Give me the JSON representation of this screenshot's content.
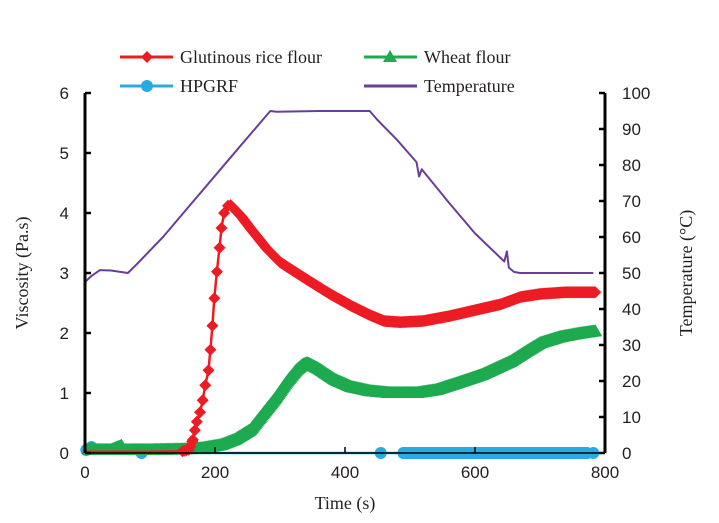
{
  "chart_data": {
    "type": "line",
    "title": "",
    "xlabel": "Time (s)",
    "ylabel": "Viscosity (Pa.s)",
    "y2label": "Temperature (°C)",
    "xlim": [
      0,
      800
    ],
    "ylim": [
      0,
      6
    ],
    "y2lim": [
      0,
      100
    ],
    "x_ticks": [
      "0",
      "200",
      "400",
      "600",
      "800"
    ],
    "y_ticks": [
      "0",
      "1",
      "2",
      "3",
      "4",
      "5",
      "6"
    ],
    "y2_ticks": [
      "0",
      "10",
      "20",
      "30",
      "40",
      "50",
      "60",
      "70",
      "80",
      "90",
      "100"
    ],
    "grid": false,
    "legend_position": "top",
    "series": [
      {
        "name": "Glutinous rice flour",
        "axis": "left",
        "color": "#ed1c24",
        "marker": "diamond",
        "points": [
          [
            0,
            0.02
          ],
          [
            100,
            0.02
          ],
          [
            150,
            0.03
          ],
          [
            160,
            0.06
          ],
          [
            166,
            0.22
          ],
          [
            169,
            0.38
          ],
          [
            172,
            0.52
          ],
          [
            177,
            0.68
          ],
          [
            181,
            0.88
          ],
          [
            185,
            1.13
          ],
          [
            190,
            1.38
          ],
          [
            193,
            1.72
          ],
          [
            196,
            2.12
          ],
          [
            199,
            2.58
          ],
          [
            203,
            3.02
          ],
          [
            207,
            3.42
          ],
          [
            210,
            3.75
          ],
          [
            214,
            4.0
          ],
          [
            220,
            4.12
          ],
          [
            224,
            4.13
          ],
          [
            240,
            3.95
          ],
          [
            254,
            3.75
          ],
          [
            280,
            3.4
          ],
          [
            300,
            3.18
          ],
          [
            340,
            2.9
          ],
          [
            377,
            2.65
          ],
          [
            410,
            2.45
          ],
          [
            438,
            2.3
          ],
          [
            460,
            2.2
          ],
          [
            485,
            2.18
          ],
          [
            520,
            2.2
          ],
          [
            560,
            2.28
          ],
          [
            600,
            2.38
          ],
          [
            640,
            2.48
          ],
          [
            670,
            2.6
          ],
          [
            700,
            2.65
          ],
          [
            740,
            2.68
          ],
          [
            785,
            2.68
          ]
        ]
      },
      {
        "name": "Wheat flour",
        "axis": "left",
        "color": "#1eaa4f",
        "marker": "triangle",
        "points": [
          [
            0,
            0.08
          ],
          [
            10,
            0.05
          ],
          [
            40,
            0.05
          ],
          [
            56,
            0.12
          ],
          [
            60,
            0.05
          ],
          [
            100,
            0.05
          ],
          [
            150,
            0.06
          ],
          [
            180,
            0.08
          ],
          [
            208,
            0.13
          ],
          [
            230,
            0.22
          ],
          [
            254,
            0.38
          ],
          [
            270,
            0.6
          ],
          [
            292,
            0.9
          ],
          [
            310,
            1.18
          ],
          [
            325,
            1.38
          ],
          [
            335,
            1.47
          ],
          [
            342,
            1.5
          ],
          [
            360,
            1.4
          ],
          [
            385,
            1.22
          ],
          [
            410,
            1.1
          ],
          [
            440,
            1.03
          ],
          [
            470,
            1.0
          ],
          [
            510,
            1.0
          ],
          [
            540,
            1.05
          ],
          [
            577,
            1.18
          ],
          [
            610,
            1.3
          ],
          [
            654,
            1.52
          ],
          [
            680,
            1.7
          ],
          [
            700,
            1.83
          ],
          [
            730,
            1.93
          ],
          [
            760,
            1.99
          ],
          [
            785,
            2.03
          ]
        ]
      },
      {
        "name": "HPGRF",
        "axis": "left",
        "color": "#29abe2",
        "marker": "circle",
        "points": [
          [
            2,
            0.05
          ],
          [
            10,
            0.1
          ],
          [
            87,
            0.0
          ],
          [
            455,
            0.0
          ],
          [
            490,
            0.0
          ],
          [
            772,
            0.0
          ],
          [
            782,
            0.0
          ]
        ],
        "dense_marker_range": [
          490,
          772
        ]
      },
      {
        "name": "Temperature",
        "axis": "right",
        "color": "#6a3d9a",
        "marker": "none",
        "points": [
          [
            0,
            47.5
          ],
          [
            10,
            49.2
          ],
          [
            23,
            50.8
          ],
          [
            40,
            50.7
          ],
          [
            66,
            50.0
          ],
          [
            80,
            52.5
          ],
          [
            120,
            60
          ],
          [
            160,
            68.5
          ],
          [
            200,
            77
          ],
          [
            240,
            85.5
          ],
          [
            285,
            95
          ],
          [
            295,
            94.8
          ],
          [
            360,
            95
          ],
          [
            438,
            95
          ],
          [
            450,
            92.5
          ],
          [
            480,
            87
          ],
          [
            510,
            80.8
          ],
          [
            514,
            76.8
          ],
          [
            518,
            78.8
          ],
          [
            560,
            69.5
          ],
          [
            600,
            61
          ],
          [
            645,
            53.2
          ],
          [
            649,
            56.0
          ],
          [
            652,
            51.5
          ],
          [
            660,
            50.3
          ],
          [
            669,
            50.0
          ],
          [
            700,
            50
          ],
          [
            740,
            50
          ],
          [
            782,
            50
          ]
        ]
      }
    ]
  },
  "legend": {
    "items": [
      {
        "label": "Glutinous rice flour",
        "color": "#ed1c24",
        "marker": "diamond"
      },
      {
        "label": "Wheat flour",
        "color": "#1eaa4f",
        "marker": "triangle"
      },
      {
        "label": "HPGRF",
        "color": "#29abe2",
        "marker": "circle"
      },
      {
        "label": "Temperature",
        "color": "#6a3d9a",
        "marker": "none"
      }
    ]
  }
}
